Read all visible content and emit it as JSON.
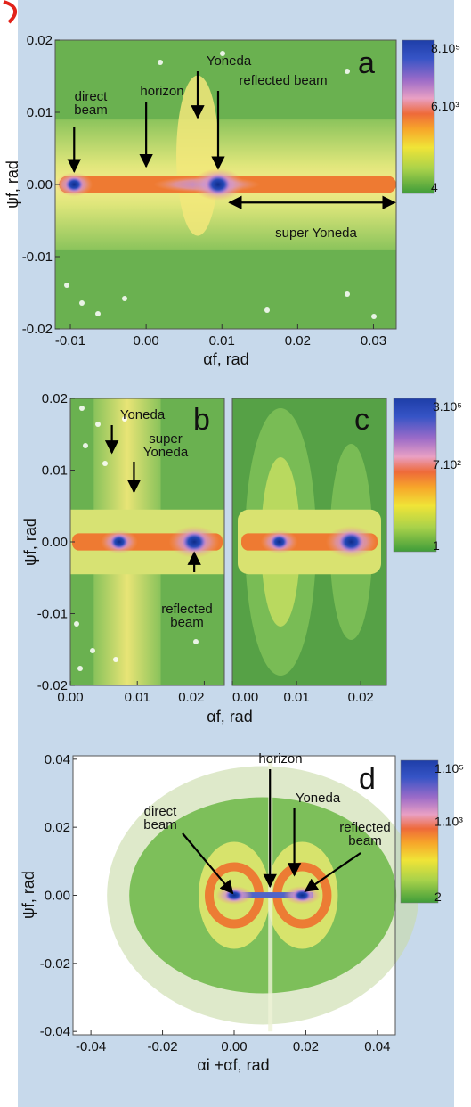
{
  "chart_data": [
    {
      "type": "heatmap",
      "panel_label": "a",
      "xlabel": "αf, rad",
      "ylabel": "ψf, rad",
      "xlim": [
        -0.012,
        0.033
      ],
      "ylim": [
        -0.02,
        0.02
      ],
      "x_ticks": [
        -0.01,
        0.0,
        0.01,
        0.02,
        0.03
      ],
      "x_tick_labels": [
        "-0.01",
        "0.00",
        "0.01",
        "0.02",
        "0.03"
      ],
      "y_ticks": [
        -0.02,
        -0.01,
        0.0,
        0.01,
        0.02
      ],
      "y_tick_labels": [
        "-0.02",
        "-0.01",
        "0.00",
        "0.01",
        "0.02"
      ],
      "colorbar": {
        "labels": [
          "8.10⁵",
          "6.10³",
          "4"
        ],
        "scale": "log"
      },
      "annotations": [
        {
          "text": "direct beam",
          "lines": [
            "direct",
            "beam"
          ],
          "x": -0.0095,
          "y": 0.0
        },
        {
          "text": "horizon",
          "x": 0.0,
          "y": 0.0
        },
        {
          "text": "Yoneda",
          "x": 0.0068,
          "y": 0.005
        },
        {
          "text": "reflected beam",
          "x": 0.0095,
          "y": 0.0
        },
        {
          "text": "super Yoneda",
          "x_range": [
            0.011,
            0.033
          ],
          "y": -0.0025
        }
      ],
      "features": [
        {
          "name": "direct beam",
          "x": -0.0095,
          "y": 0.0
        },
        {
          "name": "reflected beam",
          "x": 0.0095,
          "y": 0.0
        }
      ]
    },
    {
      "type": "heatmap",
      "panel_label": "b",
      "xlabel": "αf, rad",
      "ylabel": "ψf, rad",
      "xlim": [
        0.0,
        0.023
      ],
      "ylim": [
        -0.02,
        0.02
      ],
      "x_ticks": [
        0.0,
        0.01,
        0.02
      ],
      "x_tick_labels": [
        "0.00",
        "0.01",
        "0.02"
      ],
      "y_ticks": [
        -0.02,
        -0.01,
        0.0,
        0.01,
        0.02
      ],
      "y_tick_labels": [
        "-0.02",
        "-0.01",
        "0.00",
        "0.01",
        "0.02"
      ],
      "annotations": [
        {
          "text": "Yoneda",
          "x": 0.0062,
          "y": 0.013
        },
        {
          "text": "super Yoneda",
          "lines": [
            "super",
            "Yoneda"
          ],
          "x": 0.0095,
          "y": 0.0095
        },
        {
          "text": "reflected beam",
          "lines": [
            "reflected",
            "beam"
          ],
          "x": 0.0185,
          "y": -0.004
        }
      ],
      "features": [
        {
          "name": "beam",
          "x": 0.0073,
          "y": 0.0
        },
        {
          "name": "reflected beam",
          "x": 0.0185,
          "y": 0.0
        }
      ]
    },
    {
      "type": "heatmap",
      "panel_label": "c",
      "xlabel": "αf, rad",
      "xlim": [
        0.0,
        0.024
      ],
      "ylim": [
        -0.02,
        0.02
      ],
      "x_ticks": [
        0.0,
        0.01,
        0.02
      ],
      "x_tick_labels": [
        "0.00",
        "0.01",
        "0.02"
      ],
      "colorbar": {
        "labels": [
          "3.10⁵",
          "7.10²",
          "1"
        ],
        "scale": "log"
      },
      "features": [
        {
          "name": "beam",
          "x": 0.0073,
          "y": 0.0
        },
        {
          "name": "reflected beam",
          "x": 0.0185,
          "y": 0.0
        }
      ]
    },
    {
      "type": "heatmap",
      "panel_label": "d",
      "xlabel": "αi +αf, rad",
      "ylabel": "ψf, rad",
      "xlim": [
        -0.045,
        0.045
      ],
      "ylim": [
        -0.041,
        0.041
      ],
      "x_ticks": [
        -0.04,
        -0.02,
        0.0,
        0.02,
        0.04
      ],
      "x_tick_labels": [
        "-0.04",
        "-0.02",
        "0.00",
        "0.02",
        "0.04"
      ],
      "y_ticks": [
        -0.04,
        -0.02,
        0.0,
        0.02,
        0.04
      ],
      "y_tick_labels": [
        "-0.04",
        "-0.02",
        "0.00",
        "0.02",
        "0.04"
      ],
      "colorbar": {
        "labels": [
          "1.10⁵",
          "1.10³",
          "2"
        ],
        "scale": "log"
      },
      "annotations": [
        {
          "text": "direct beam",
          "lines": [
            "direct",
            "beam"
          ],
          "x": 0.0,
          "y": 0.0
        },
        {
          "text": "horizon",
          "x": 0.01,
          "y": 0.0
        },
        {
          "text": "Yoneda",
          "x": 0.017,
          "y": 0.006
        },
        {
          "text": "reflected beam",
          "lines": [
            "reflected",
            "beam"
          ],
          "x": 0.019,
          "y": 0.0
        }
      ],
      "features": [
        {
          "name": "direct beam",
          "x": 0.0,
          "y": 0.0
        },
        {
          "name": "reflected beam",
          "x": 0.019,
          "y": 0.0
        }
      ]
    }
  ]
}
